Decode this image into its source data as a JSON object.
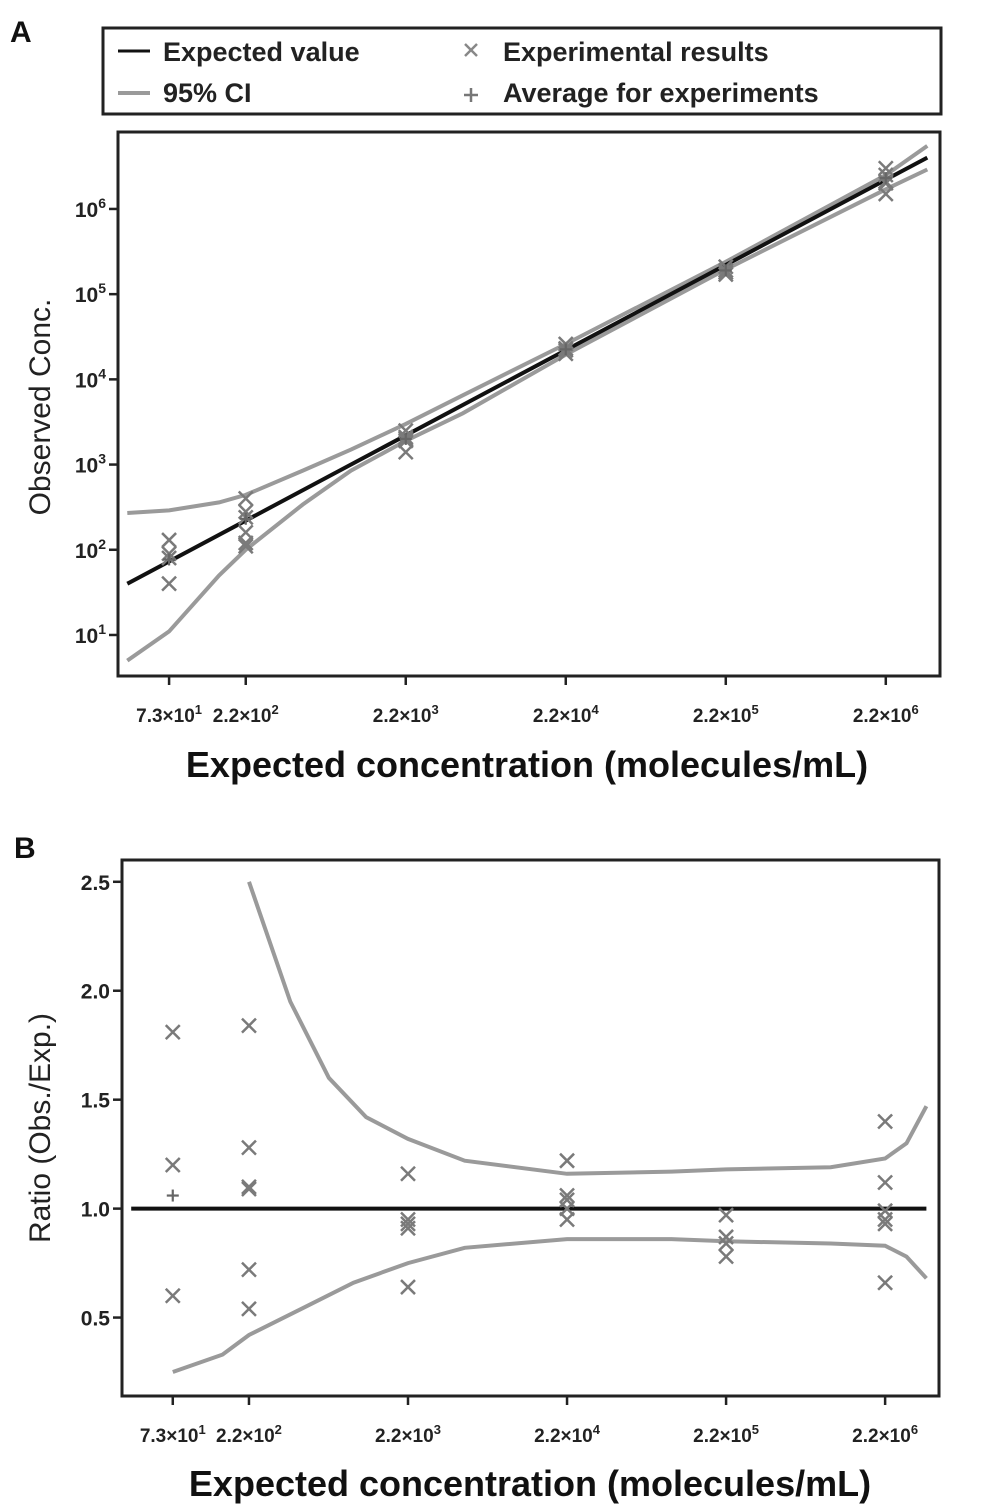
{
  "panels": {
    "a": {
      "label": "A"
    },
    "b": {
      "label": "B"
    }
  },
  "legend": {
    "items": [
      {
        "label": "Expected value",
        "symbol": "line"
      },
      {
        "label": "95% CI",
        "symbol": "ci"
      },
      {
        "label": "Experimental results",
        "symbol": "x"
      },
      {
        "label": "Average for experiments",
        "symbol": "plus"
      }
    ]
  },
  "colors": {
    "expected_line": "#111111",
    "ci": "#9a9a9a",
    "points": "#7a7a7a",
    "axis": "#222222"
  },
  "chart_data": [
    {
      "type": "scatter",
      "panel": "A",
      "xlabel": "Expected concentration (molecules/mL)",
      "ylabel": "Observed Conc.",
      "x_scale": "log",
      "y_scale": "log",
      "x_ticks": [
        {
          "value": 73,
          "mant": "7.3",
          "exp": "1"
        },
        {
          "value": 220,
          "mant": "2.2",
          "exp": "2"
        },
        {
          "value": 2200,
          "mant": "2.2",
          "exp": "3"
        },
        {
          "value": 22000,
          "mant": "2.2",
          "exp": "4"
        },
        {
          "value": 220000,
          "mant": "2.2",
          "exp": "5"
        },
        {
          "value": 2200000,
          "mant": "2.2",
          "exp": "6"
        }
      ],
      "y_ticks": [
        {
          "value": 10,
          "exp": "1"
        },
        {
          "value": 100,
          "exp": "2"
        },
        {
          "value": 1000,
          "exp": "3"
        },
        {
          "value": 10000,
          "exp": "4"
        },
        {
          "value": 100000,
          "exp": "5"
        },
        {
          "value": 1000000,
          "exp": "6"
        }
      ],
      "xlim": [
        35,
        4800000
      ],
      "ylim": [
        3.3,
        8000000
      ],
      "series": [
        {
          "name": "Expected value",
          "kind": "line",
          "x": [
            40,
            4000000
          ],
          "y": [
            40,
            4000000
          ]
        },
        {
          "name": "95% CI",
          "kind": "band",
          "x": [
            40,
            73,
            150,
            220,
            500,
            1000,
            2200,
            5000,
            22000,
            220000,
            2200000,
            4000000
          ],
          "upper": [
            270,
            290,
            360,
            440,
            850,
            1500,
            3000,
            6500,
            26000,
            240000,
            2500000,
            5500000
          ],
          "lower": [
            5,
            11,
            50,
            100,
            340,
            850,
            1900,
            4000,
            19500,
            195000,
            1700000,
            2900000
          ]
        },
        {
          "name": "Experimental results",
          "kind": "scatter",
          "x": [
            73,
            73,
            73,
            73,
            220,
            220,
            220,
            220,
            220,
            220,
            2200,
            2200,
            2200,
            2200,
            2200,
            22000,
            22000,
            22000,
            22000,
            220000,
            220000,
            220000,
            220000,
            2200000,
            2200000,
            2200000,
            2200000,
            2200000
          ],
          "y": [
            130,
            90,
            80,
            40,
            400,
            280,
            240,
            160,
            120,
            110,
            2500,
            2100,
            2000,
            1900,
            1400,
            26000,
            23000,
            22000,
            20000,
            210000,
            190000,
            180000,
            170000,
            3000000,
            2500000,
            2100000,
            2000000,
            1500000
          ]
        },
        {
          "name": "Average for experiments",
          "kind": "plus",
          "x": [
            73,
            220,
            2200,
            22000,
            220000,
            2200000
          ],
          "y": [
            77,
            231,
            2000,
            22500,
            190000,
            2300000
          ]
        }
      ]
    },
    {
      "type": "scatter",
      "panel": "B",
      "xlabel": "Expected concentration (molecules/mL)",
      "ylabel": "Ratio (Obs./Exp.)",
      "x_scale": "log",
      "y_scale": "linear",
      "x_ticks": [
        {
          "value": 73,
          "mant": "7.3",
          "exp": "1"
        },
        {
          "value": 220,
          "mant": "2.2",
          "exp": "2"
        },
        {
          "value": 2200,
          "mant": "2.2",
          "exp": "3"
        },
        {
          "value": 22000,
          "mant": "2.2",
          "exp": "4"
        },
        {
          "value": 220000,
          "mant": "2.2",
          "exp": "5"
        },
        {
          "value": 2200000,
          "mant": "2.2",
          "exp": "6"
        }
      ],
      "y_ticks": [
        {
          "value": 0.5,
          "label": "0.5"
        },
        {
          "value": 1.0,
          "label": "1.0"
        },
        {
          "value": 1.5,
          "label": "1.5"
        },
        {
          "value": 2.0,
          "label": "2.0"
        },
        {
          "value": 2.5,
          "label": "2.5"
        }
      ],
      "xlim": [
        35,
        4800000
      ],
      "ylim": [
        0.14,
        2.6
      ],
      "series": [
        {
          "name": "Expected value",
          "kind": "line",
          "x": [
            40,
            4000000
          ],
          "y": [
            1.0,
            1.0
          ]
        },
        {
          "name": "95% CI upper",
          "kind": "curve",
          "x": [
            220,
            400,
            700,
            1200,
            2200,
            5000,
            22000,
            100000,
            220000,
            1000000,
            2200000,
            3000000,
            4000000
          ],
          "y": [
            2.5,
            1.95,
            1.6,
            1.42,
            1.32,
            1.22,
            1.16,
            1.17,
            1.18,
            1.19,
            1.23,
            1.3,
            1.47
          ]
        },
        {
          "name": "95% CI lower",
          "kind": "curve",
          "x": [
            73,
            150,
            220,
            500,
            1000,
            2200,
            5000,
            22000,
            100000,
            220000,
            1000000,
            2200000,
            3000000,
            4000000
          ],
          "y": [
            0.25,
            0.33,
            0.42,
            0.55,
            0.66,
            0.75,
            0.82,
            0.86,
            0.86,
            0.85,
            0.84,
            0.83,
            0.78,
            0.68
          ]
        },
        {
          "name": "Experimental results",
          "kind": "scatter",
          "x": [
            73,
            73,
            73,
            220,
            220,
            220,
            220,
            220,
            220,
            2200,
            2200,
            2200,
            2200,
            2200,
            22000,
            22000,
            22000,
            22000,
            22000,
            220000,
            220000,
            220000,
            220000,
            2200000,
            2200000,
            2200000,
            2200000,
            2200000,
            2200000
          ],
          "y": [
            1.81,
            1.2,
            0.6,
            1.84,
            1.28,
            1.1,
            1.09,
            0.72,
            0.54,
            1.16,
            0.95,
            0.93,
            0.91,
            0.64,
            1.22,
            1.06,
            1.04,
            1.0,
            0.95,
            0.97,
            0.87,
            0.84,
            0.78,
            1.4,
            1.12,
            0.99,
            0.95,
            0.93,
            0.66
          ]
        },
        {
          "name": "Average for experiments",
          "kind": "plus",
          "x": [
            73
          ],
          "y": [
            1.06
          ]
        }
      ]
    }
  ]
}
